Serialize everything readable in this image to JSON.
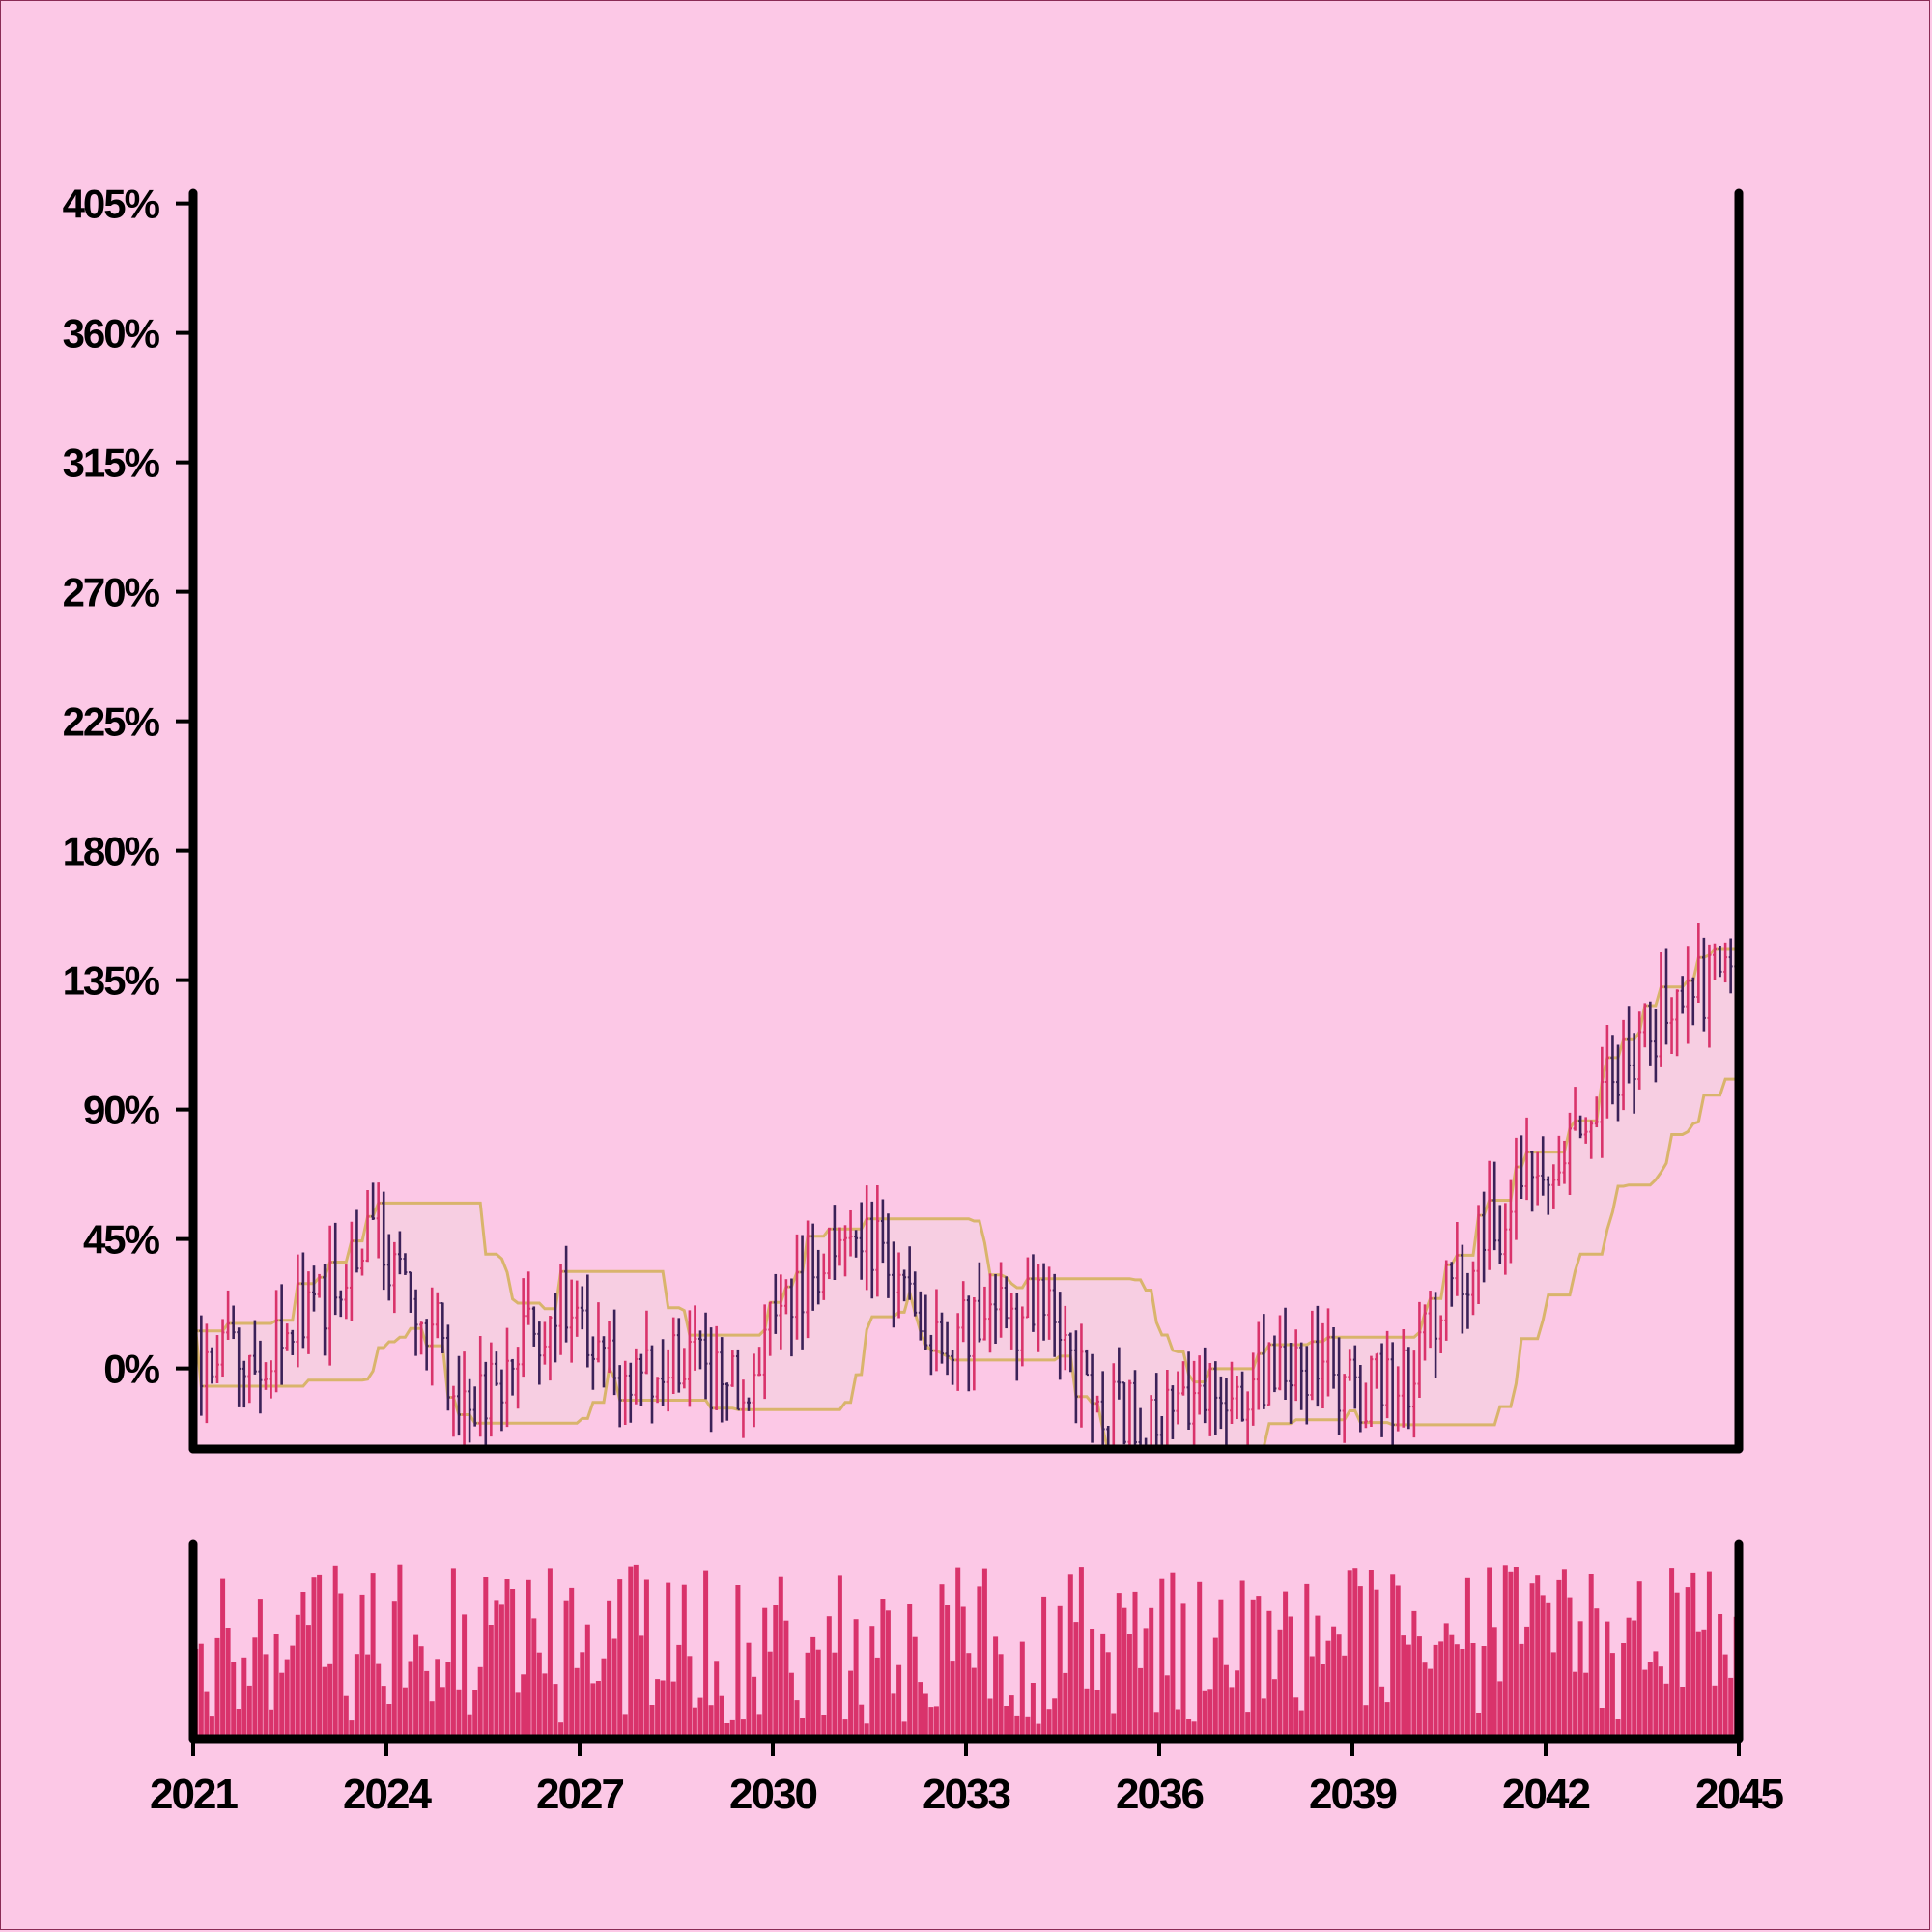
{
  "colors": {
    "background": "#fcc8e6",
    "up": "#d9336b",
    "down": "#3b2158",
    "channel": "#d9b46c",
    "channel_fill": "#f6cfe0",
    "volume": "#d9336b",
    "axis": "#000000"
  },
  "chart_data": {
    "type": "ohlc",
    "title": "",
    "xlabel": "",
    "ylabel": "",
    "y_ticks": [
      "0%",
      "45%",
      "90%",
      "135%",
      "180%",
      "225%",
      "270%",
      "315%",
      "360%",
      "405%"
    ],
    "x_ticks": [
      "2021",
      "2024",
      "2027",
      "2030",
      "2033",
      "2036",
      "2039",
      "2042",
      "2045"
    ],
    "xlim": [
      "2021",
      "2045"
    ],
    "ylim": [
      -28,
      422
    ],
    "grid": false,
    "legend": "none",
    "panels": [
      "price (OHLC bars with a moving channel)",
      "volume"
    ],
    "price_path": [
      {
        "x": "2021.0",
        "y": 0
      },
      {
        "x": "2022.0",
        "y": 5
      },
      {
        "x": "2023.0",
        "y": 25
      },
      {
        "x": "2023.7",
        "y": 50
      },
      {
        "x": "2024.5",
        "y": 25
      },
      {
        "x": "2025.3",
        "y": -15
      },
      {
        "x": "2026.0",
        "y": 5
      },
      {
        "x": "2026.8",
        "y": 25
      },
      {
        "x": "2027.5",
        "y": -5
      },
      {
        "x": "2028.5",
        "y": 5
      },
      {
        "x": "2029.5",
        "y": -10
      },
      {
        "x": "2030.3",
        "y": 30
      },
      {
        "x": "2031.5",
        "y": 45
      },
      {
        "x": "2032.5",
        "y": 15
      },
      {
        "x": "2033.5",
        "y": 15
      },
      {
        "x": "2034.2",
        "y": 20
      },
      {
        "x": "2035.0",
        "y": -15
      },
      {
        "x": "2036.0",
        "y": -20
      },
      {
        "x": "2037.0",
        "y": -10
      },
      {
        "x": "2038.0",
        "y": 5
      },
      {
        "x": "2039.0",
        "y": -5
      },
      {
        "x": "2039.7",
        "y": -10
      },
      {
        "x": "2040.5",
        "y": 25
      },
      {
        "x": "2041.5",
        "y": 60
      },
      {
        "x": "2042.5",
        "y": 85
      },
      {
        "x": "2043.5",
        "y": 115
      },
      {
        "x": "2044.9",
        "y": 140
      }
    ],
    "channel_window_bars": 20,
    "bar_count": 288,
    "volume_range": [
      0,
      100
    ]
  }
}
